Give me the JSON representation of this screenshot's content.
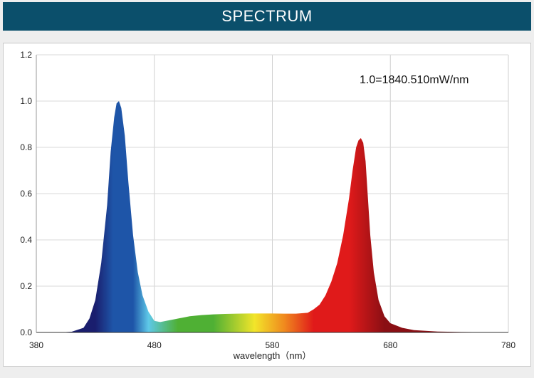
{
  "header": {
    "title": "SPECTRUM"
  },
  "chart_data": {
    "type": "area",
    "title": "SPECTRUM",
    "xlabel": "wavelength（nm）",
    "ylabel": "",
    "annotation": "1.0=1840.510mW/nm",
    "xlim": [
      380,
      780
    ],
    "ylim": [
      0,
      1.2
    ],
    "x_ticks": [
      380,
      480,
      580,
      680,
      780
    ],
    "y_ticks": [
      0.0,
      0.2,
      0.4,
      0.6,
      0.8,
      1.0,
      1.2
    ],
    "x_tick_labels": [
      "380",
      "480",
      "580",
      "680",
      "780"
    ],
    "y_tick_labels": [
      "0.0",
      "0.2",
      "0.4",
      "0.6",
      "0.8",
      "1.0",
      "1.2"
    ],
    "grid": true,
    "series": [
      {
        "x": [
          380,
          400,
          410,
          420,
          425,
          430,
          435,
          440,
          443,
          446,
          448,
          450,
          452,
          455,
          458,
          462,
          466,
          470,
          475,
          480,
          485,
          490,
          500,
          510,
          520,
          530,
          540,
          550,
          560,
          570,
          580,
          590,
          600,
          610,
          615,
          620,
          625,
          630,
          635,
          640,
          645,
          648,
          651,
          653,
          655,
          657,
          659,
          661,
          663,
          666,
          670,
          675,
          680,
          690,
          700,
          720,
          740,
          760,
          780
        ],
        "y": [
          0.0,
          0.0,
          0.003,
          0.02,
          0.06,
          0.14,
          0.3,
          0.55,
          0.78,
          0.93,
          0.99,
          1.0,
          0.97,
          0.85,
          0.65,
          0.42,
          0.26,
          0.16,
          0.09,
          0.05,
          0.045,
          0.05,
          0.06,
          0.07,
          0.075,
          0.078,
          0.08,
          0.081,
          0.082,
          0.082,
          0.082,
          0.081,
          0.081,
          0.085,
          0.1,
          0.12,
          0.16,
          0.22,
          0.3,
          0.42,
          0.58,
          0.7,
          0.8,
          0.83,
          0.84,
          0.82,
          0.74,
          0.58,
          0.42,
          0.26,
          0.14,
          0.07,
          0.04,
          0.02,
          0.01,
          0.004,
          0.002,
          0.001,
          0.0
        ]
      }
    ],
    "colors": {
      "violet": "#1a1e6e",
      "blue": "#1e55a8",
      "cyan": "#5ec8e8",
      "green": "#4fb034",
      "yellow": "#f2e52a",
      "orange": "#f08a1e",
      "red": "#e01a1a",
      "deep_red": "#8a0f14",
      "header": "#0b4f6b"
    }
  }
}
